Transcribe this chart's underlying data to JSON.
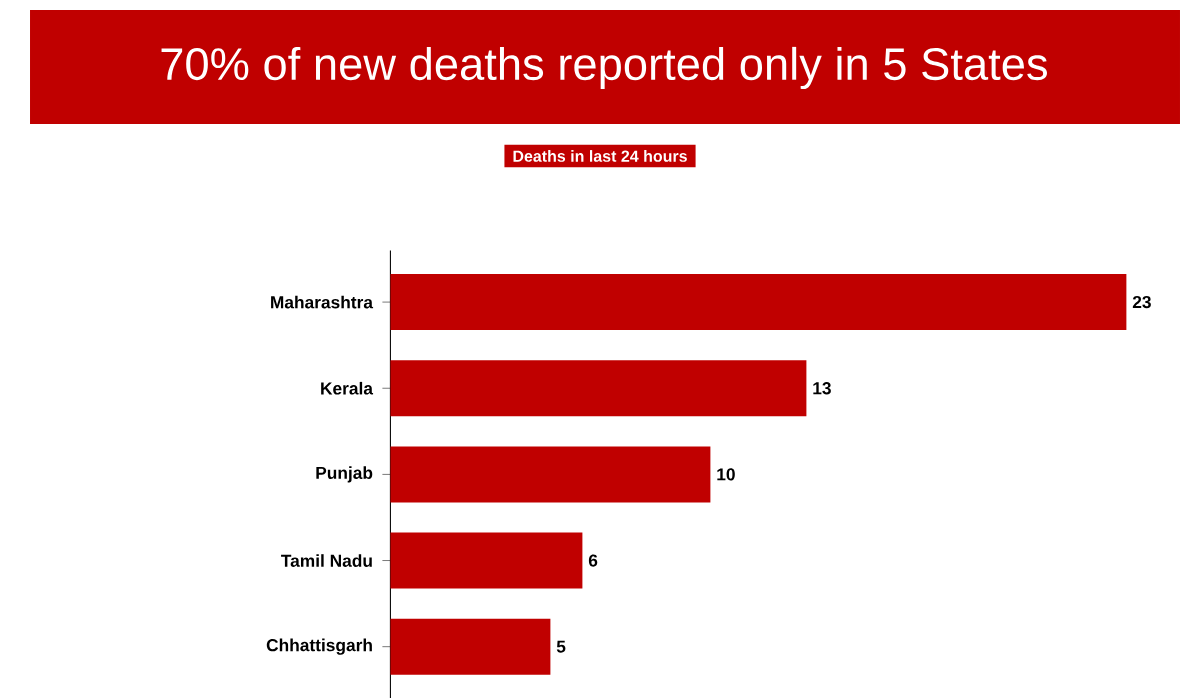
{
  "chart_data": {
    "type": "bar",
    "orientation": "horizontal",
    "title": "70% of new deaths reported only in 5 States",
    "subtitle": "Deaths in last 24 hours",
    "categories": [
      "Maharashtra",
      "Kerala",
      "Punjab",
      "Tamil Nadu",
      "Chhattisgarh"
    ],
    "values": [
      23,
      13,
      10,
      6,
      5
    ],
    "color": "#c00000",
    "data_labels": true
  }
}
